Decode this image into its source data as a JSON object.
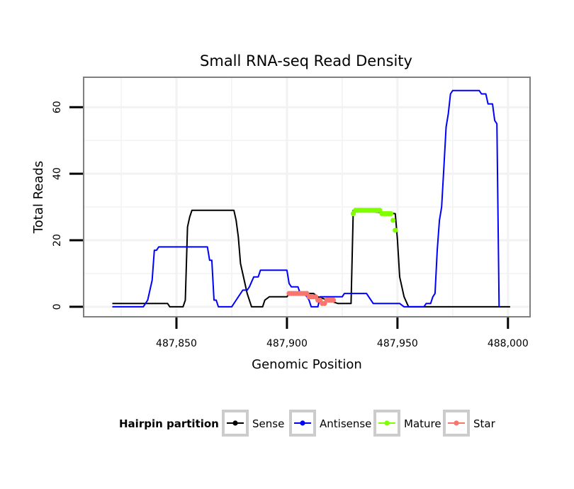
{
  "chart_data": {
    "type": "line",
    "title": "Small RNA-seq Read Density",
    "xlabel": "Genomic Position",
    "ylabel": "Total Reads",
    "xlim": [
      487808,
      488010
    ],
    "ylim": [
      -3,
      69
    ],
    "x_ticks": [
      487850,
      487900,
      487950,
      488000
    ],
    "x_tick_labels": [
      "487,850",
      "487,900",
      "487,950",
      "488,000"
    ],
    "y_ticks": [
      0,
      20,
      40,
      60
    ],
    "y_tick_labels": [
      "0",
      "20",
      "40",
      "60"
    ],
    "grid": true,
    "legend": {
      "title": "Hairpin partition",
      "position": "bottom",
      "entries": [
        "Sense",
        "Antisense",
        "Mature",
        "Star"
      ]
    },
    "series": [
      {
        "name": "Sense",
        "color": "#000000",
        "style": "line",
        "points": [
          [
            487821,
            1
          ],
          [
            487846,
            1
          ],
          [
            487847,
            0
          ],
          [
            487853,
            0
          ],
          [
            487854,
            2
          ],
          [
            487855,
            24
          ],
          [
            487856,
            27
          ],
          [
            487857,
            29
          ],
          [
            487876,
            29
          ],
          [
            487877,
            26
          ],
          [
            487878,
            21
          ],
          [
            487879,
            13
          ],
          [
            487882,
            4
          ],
          [
            487884,
            0
          ],
          [
            487889,
            0
          ],
          [
            487890,
            2
          ],
          [
            487892,
            3
          ],
          [
            487900,
            3
          ],
          [
            487901,
            4
          ],
          [
            487912,
            4
          ],
          [
            487914,
            3
          ],
          [
            487923,
            1
          ],
          [
            487929,
            1
          ],
          [
            487930,
            29
          ],
          [
            487949,
            28
          ],
          [
            487950,
            20
          ],
          [
            487951,
            9
          ],
          [
            487953,
            3
          ],
          [
            487955,
            0
          ],
          [
            488001,
            0
          ]
        ]
      },
      {
        "name": "Antisense",
        "color": "#0000ff",
        "style": "line",
        "points": [
          [
            487821,
            0
          ],
          [
            487835,
            0
          ],
          [
            487837,
            2
          ],
          [
            487839,
            8
          ],
          [
            487840,
            17
          ],
          [
            487841,
            17
          ],
          [
            487842,
            18
          ],
          [
            487857,
            18
          ],
          [
            487862,
            18
          ],
          [
            487864,
            18
          ],
          [
            487865,
            14
          ],
          [
            487866,
            14
          ],
          [
            487867,
            2
          ],
          [
            487868,
            2
          ],
          [
            487869,
            0
          ],
          [
            487875,
            0
          ],
          [
            487877,
            2
          ],
          [
            487880,
            5
          ],
          [
            487882,
            5
          ],
          [
            487883,
            6
          ],
          [
            487885,
            9
          ],
          [
            487887,
            9
          ],
          [
            487888,
            11
          ],
          [
            487900,
            11
          ],
          [
            487901,
            7
          ],
          [
            487902,
            6
          ],
          [
            487905,
            6
          ],
          [
            487906,
            4
          ],
          [
            487908,
            4
          ],
          [
            487910,
            2
          ],
          [
            487911,
            0
          ],
          [
            487914,
            0
          ],
          [
            487915,
            3
          ],
          [
            487925,
            3
          ],
          [
            487926,
            4
          ],
          [
            487936,
            4
          ],
          [
            487939,
            1
          ],
          [
            487951,
            1
          ],
          [
            487953,
            0
          ],
          [
            487962,
            0
          ],
          [
            487963,
            1
          ],
          [
            487965,
            1
          ],
          [
            487966,
            3
          ],
          [
            487967,
            4
          ],
          [
            487968,
            17
          ],
          [
            487969,
            26
          ],
          [
            487970,
            30
          ],
          [
            487971,
            42
          ],
          [
            487972,
            54
          ],
          [
            487973,
            58
          ],
          [
            487974,
            64
          ],
          [
            487975,
            65
          ],
          [
            487987,
            65
          ],
          [
            487988,
            64
          ],
          [
            487990,
            64
          ],
          [
            487991,
            61
          ],
          [
            487993,
            61
          ],
          [
            487994,
            56
          ],
          [
            487995,
            55
          ],
          [
            487996,
            0
          ]
        ]
      },
      {
        "name": "Mature",
        "color": "#7fff00",
        "style": "points",
        "points": [
          [
            487930,
            28
          ],
          [
            487931,
            29
          ],
          [
            487932,
            29
          ],
          [
            487933,
            29
          ],
          [
            487934,
            29
          ],
          [
            487935,
            29
          ],
          [
            487936,
            29
          ],
          [
            487937,
            29
          ],
          [
            487938,
            29
          ],
          [
            487939,
            29
          ],
          [
            487940,
            29
          ],
          [
            487941,
            29
          ],
          [
            487942,
            29
          ],
          [
            487943,
            28
          ],
          [
            487944,
            28
          ],
          [
            487945,
            28
          ],
          [
            487946,
            28
          ],
          [
            487947,
            28
          ],
          [
            487948,
            26
          ],
          [
            487949,
            23
          ]
        ]
      },
      {
        "name": "Star",
        "color": "#f8766d",
        "style": "points",
        "points": [
          [
            487901,
            4
          ],
          [
            487902,
            4
          ],
          [
            487903,
            4
          ],
          [
            487904,
            4
          ],
          [
            487905,
            4
          ],
          [
            487906,
            4
          ],
          [
            487907,
            4
          ],
          [
            487908,
            4
          ],
          [
            487909,
            4
          ],
          [
            487910,
            3
          ],
          [
            487911,
            3
          ],
          [
            487912,
            3
          ],
          [
            487913,
            3
          ],
          [
            487914,
            2
          ],
          [
            487915,
            2
          ],
          [
            487916,
            1
          ],
          [
            487917,
            1
          ],
          [
            487918,
            2
          ],
          [
            487919,
            2
          ],
          [
            487920,
            2
          ],
          [
            487921,
            2
          ]
        ]
      }
    ]
  }
}
